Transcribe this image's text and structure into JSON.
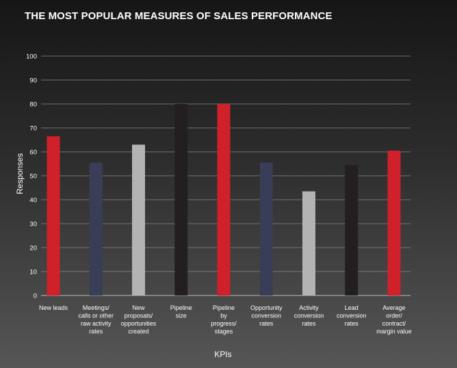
{
  "chart_data": {
    "type": "bar",
    "title": "THE MOST POPULAR MEASURES OF SALES PERFORMANCE",
    "xlabel": "KPIs",
    "ylabel": "Responses",
    "ylim": [
      0,
      100
    ],
    "yticks": [
      0,
      10,
      20,
      30,
      40,
      50,
      60,
      70,
      80,
      90,
      100
    ],
    "grid": true,
    "categories": [
      "New leads",
      "Meetings/ calls or other raw activity rates",
      "New proposals/ opportunities created",
      "Pipeline size",
      "Pipeline by progress/ stages",
      "Opportunity conversion rates",
      "Activity conversion rates",
      "Lead conversion rates",
      "Average order/ contract/ margin value"
    ],
    "category_lines": [
      [
        "New leads"
      ],
      [
        "Meetings/",
        "calls or other",
        "raw activity",
        "rates"
      ],
      [
        "New",
        "proposals/",
        "opportunities",
        "created"
      ],
      [
        "Pipeline",
        "size"
      ],
      [
        "Pipeline",
        "by",
        "progress/",
        "stages"
      ],
      [
        "Opportunity",
        "conversion",
        "rates"
      ],
      [
        "Activity",
        "conversion",
        "rates"
      ],
      [
        "Lead",
        "conversion",
        "rates"
      ],
      [
        "Average",
        "order/",
        "contract/",
        "margin value"
      ]
    ],
    "values": [
      66.5,
      55.5,
      63,
      80,
      80,
      55.5,
      43.5,
      54.5,
      60.5
    ],
    "colors": [
      "#d0202a",
      "#3a3d57",
      "#b3b3b3",
      "#231f20",
      "#d0202a",
      "#3a3d57",
      "#b3b3b3",
      "#231f20",
      "#d0202a"
    ]
  }
}
